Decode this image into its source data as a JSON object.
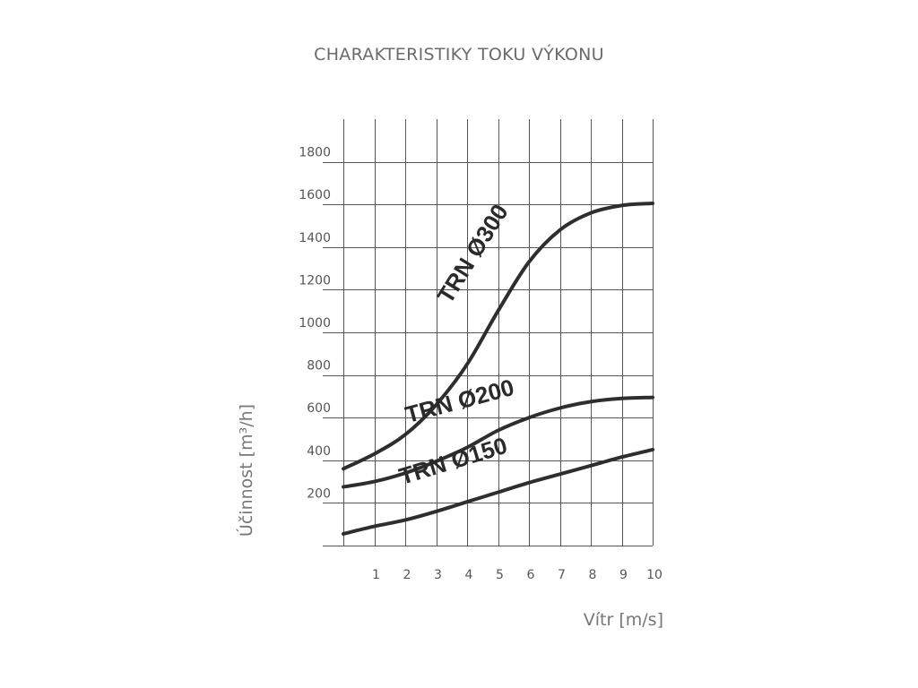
{
  "chart_data": {
    "type": "line",
    "title": "CHARAKTERISTIKY TOKU VÝKONU",
    "xlabel": "Vítr [m/s]",
    "ylabel": "Účinnost [m³/h]",
    "xlim": [
      0,
      10
    ],
    "ylim": [
      0,
      2000
    ],
    "x_ticks": [
      "1",
      "2",
      "3",
      "4",
      "5",
      "6",
      "7",
      "8",
      "9",
      "10"
    ],
    "y_ticks": [
      "200",
      "400",
      "600",
      "800",
      "1000",
      "1200",
      "1400",
      "1600",
      "1800"
    ],
    "grid": true,
    "series": [
      {
        "name": "TRN Ø300",
        "x": [
          0,
          1,
          2,
          3,
          4,
          5,
          6,
          7,
          8,
          9,
          10
        ],
        "y": [
          360,
          430,
          520,
          660,
          850,
          1100,
          1330,
          1480,
          1560,
          1595,
          1605
        ]
      },
      {
        "name": "TRN Ø200",
        "x": [
          0,
          1,
          2,
          3,
          4,
          5,
          6,
          7,
          8,
          9,
          10
        ],
        "y": [
          275,
          300,
          340,
          395,
          460,
          540,
          600,
          645,
          675,
          690,
          695
        ]
      },
      {
        "name": "TRN Ø150",
        "x": [
          0,
          1,
          2,
          3,
          4,
          5,
          6,
          7,
          8,
          9,
          10
        ],
        "y": [
          55,
          90,
          120,
          160,
          205,
          250,
          295,
          335,
          375,
          415,
          450
        ]
      }
    ]
  }
}
